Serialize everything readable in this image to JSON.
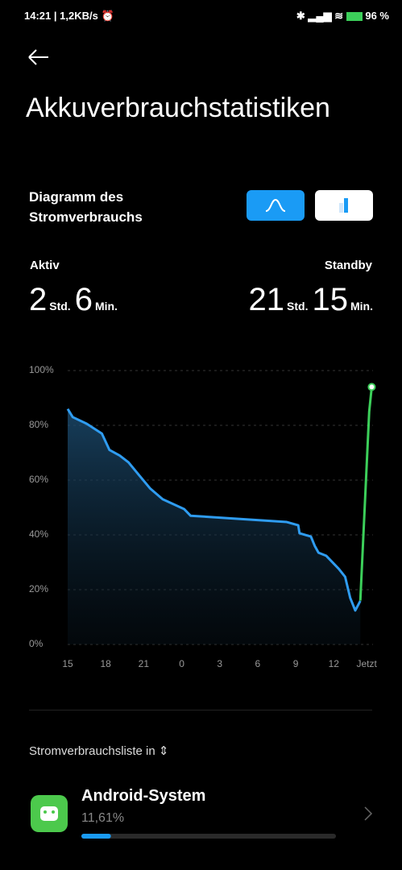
{
  "status_bar": {
    "time": "14:21",
    "speed": "1,2KB/s",
    "battery": "96 %"
  },
  "header": {
    "title": "Akkuverbrauchstatistiken"
  },
  "diagram": {
    "title": "Diagramm des Stromverbrauchs"
  },
  "summary": {
    "active": {
      "label": "Aktiv",
      "hours": 2,
      "hours_unit": "Std.",
      "minutes": 6,
      "minutes_unit": "Min."
    },
    "standby": {
      "label": "Standby",
      "hours": 21,
      "hours_unit": "Std.",
      "minutes": 15,
      "minutes_unit": "Min."
    }
  },
  "chart_data": {
    "type": "line",
    "xlim": [
      0,
      24.1
    ],
    "xticks": [
      {
        "value": 0,
        "label": "15"
      },
      {
        "value": 3,
        "label": "18"
      },
      {
        "value": 6,
        "label": "21"
      },
      {
        "value": 9,
        "label": "0"
      },
      {
        "value": 12,
        "label": "3"
      },
      {
        "value": 15,
        "label": "6"
      },
      {
        "value": 18,
        "label": "9"
      },
      {
        "value": 21,
        "label": "12"
      },
      {
        "value": 23.6,
        "label": "Jetzt"
      }
    ],
    "ylim": [
      0,
      100
    ],
    "yticks": [
      {
        "value": 0,
        "label": "0%"
      },
      {
        "value": 20,
        "label": "20%"
      },
      {
        "value": 40,
        "label": "40%"
      },
      {
        "value": 60,
        "label": "60%"
      },
      {
        "value": 80,
        "label": "80%"
      },
      {
        "value": 100,
        "label": "100%"
      }
    ],
    "grid": true,
    "series": [
      {
        "color": "#2f9cf0",
        "x": [
          0,
          0.4,
          1.5,
          2.7,
          3.3,
          4.1,
          4.8,
          5.6,
          6.5,
          7.5,
          9.2,
          9.7,
          17.3,
          18.2,
          18.3,
          19.2,
          19.5,
          19.8,
          20.4,
          21.4,
          21.9,
          22.3,
          22.7,
          23.1
        ],
        "values": [
          86,
          83,
          80.6,
          77,
          71,
          69,
          66.5,
          62,
          57,
          53,
          49.4,
          47,
          44.7,
          43.5,
          40.6,
          39.4,
          36,
          33.5,
          32.4,
          27.6,
          24.7,
          17,
          12.4,
          15.9
        ]
      },
      {
        "color": "#3ccf5a",
        "x": [
          23.1,
          23.8,
          24
        ],
        "values": [
          16,
          85,
          94
        ]
      }
    ]
  },
  "list": {
    "title": "Stromverbrauchsliste in",
    "items": [
      {
        "name": "Android-System",
        "usage": 11.61,
        "usage_label": "11,61%"
      }
    ]
  }
}
